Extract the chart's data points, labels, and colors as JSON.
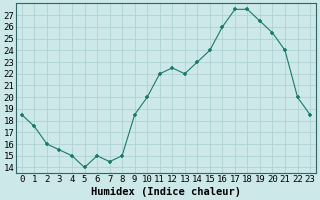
{
  "xlabel": "Humidex (Indice chaleur)",
  "x_values": [
    0,
    1,
    2,
    3,
    4,
    5,
    6,
    7,
    8,
    9,
    10,
    11,
    12,
    13,
    14,
    15,
    16,
    17,
    18,
    19,
    20,
    21,
    22,
    23
  ],
  "y_values": [
    18.5,
    17.5,
    16,
    15.5,
    15,
    14,
    15,
    14.5,
    15,
    18.5,
    20,
    22,
    22.5,
    22,
    23,
    24,
    26,
    27.5,
    27.5,
    26.5,
    25.5,
    24,
    20,
    18.5
  ],
  "xlim": [
    -0.5,
    23.5
  ],
  "ylim": [
    13.5,
    28.0
  ],
  "line_color": "#1a7a6a",
  "marker_color": "#1a7a6a",
  "bg_color": "#cce8e8",
  "grid_color": "#aacece",
  "tick_label_fontsize": 6.5,
  "xlabel_fontsize": 7.5,
  "yticks": [
    14,
    15,
    16,
    17,
    18,
    19,
    20,
    21,
    22,
    23,
    24,
    25,
    26,
    27
  ],
  "xticks": [
    0,
    1,
    2,
    3,
    4,
    5,
    6,
    7,
    8,
    9,
    10,
    11,
    12,
    13,
    14,
    15,
    16,
    17,
    18,
    19,
    20,
    21,
    22,
    23
  ]
}
